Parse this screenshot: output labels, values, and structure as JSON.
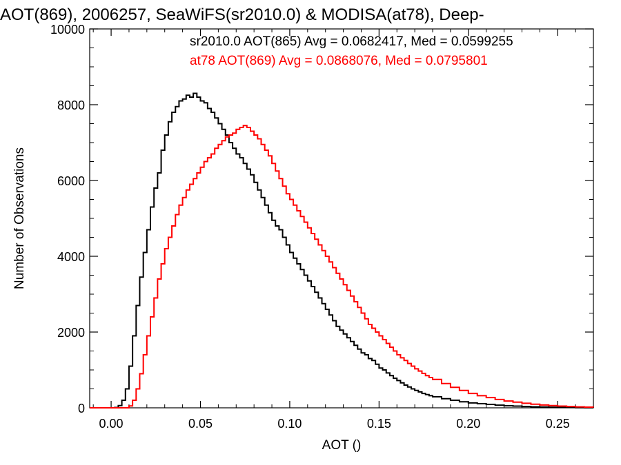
{
  "chart_data": {
    "type": "line",
    "title": "AOT(869), 2006257, SeaWiFS(sr2010.0) & MODISA(at78), Deep-",
    "xlabel": "AOT ()",
    "ylabel": "Number of Observations",
    "xlim": [
      -0.012,
      0.27
    ],
    "ylim": [
      0,
      10000
    ],
    "x_ticks": [
      0.0,
      0.05,
      0.1,
      0.15,
      0.2,
      0.25
    ],
    "x_tick_labels": [
      "0.00",
      "0.05",
      "0.10",
      "0.15",
      "0.20",
      "0.25"
    ],
    "y_ticks": [
      0,
      2000,
      4000,
      6000,
      8000,
      10000
    ],
    "y_tick_labels": [
      "0",
      "2000",
      "4000",
      "6000",
      "8000",
      "10000"
    ],
    "grid": false,
    "line_style": "step",
    "annotations": [
      {
        "text": "sr2010.0 AOT(865) Avg = 0.0682417, Med = 0.0599255",
        "color": "#000000"
      },
      {
        "text": "at78 AOT(869) Avg = 0.0868076, Med = 0.0795801",
        "color": "#ff0000"
      }
    ],
    "series": [
      {
        "color": "#000000",
        "points": [
          [
            -0.012,
            0
          ],
          [
            0.0,
            0
          ],
          [
            0.002,
            10
          ],
          [
            0.004,
            60
          ],
          [
            0.006,
            200
          ],
          [
            0.008,
            500
          ],
          [
            0.01,
            1100
          ],
          [
            0.012,
            1900
          ],
          [
            0.014,
            2700
          ],
          [
            0.016,
            3450
          ],
          [
            0.018,
            4100
          ],
          [
            0.02,
            4700
          ],
          [
            0.022,
            5300
          ],
          [
            0.024,
            5800
          ],
          [
            0.026,
            6200
          ],
          [
            0.028,
            6800
          ],
          [
            0.03,
            7200
          ],
          [
            0.032,
            7550
          ],
          [
            0.034,
            7800
          ],
          [
            0.036,
            7950
          ],
          [
            0.038,
            8100
          ],
          [
            0.04,
            8150
          ],
          [
            0.042,
            8250
          ],
          [
            0.044,
            8200
          ],
          [
            0.046,
            8300
          ],
          [
            0.048,
            8200
          ],
          [
            0.05,
            8100
          ],
          [
            0.052,
            8050
          ],
          [
            0.054,
            7900
          ],
          [
            0.056,
            7800
          ],
          [
            0.058,
            7650
          ],
          [
            0.06,
            7500
          ],
          [
            0.062,
            7350
          ],
          [
            0.064,
            7200
          ],
          [
            0.066,
            7000
          ],
          [
            0.068,
            6850
          ],
          [
            0.07,
            6700
          ],
          [
            0.072,
            6600
          ],
          [
            0.074,
            6450
          ],
          [
            0.076,
            6300
          ],
          [
            0.078,
            6150
          ],
          [
            0.08,
            5950
          ],
          [
            0.082,
            5750
          ],
          [
            0.084,
            5550
          ],
          [
            0.086,
            5350
          ],
          [
            0.088,
            5150
          ],
          [
            0.09,
            4950
          ],
          [
            0.092,
            4800
          ],
          [
            0.094,
            4700
          ],
          [
            0.096,
            4500
          ],
          [
            0.098,
            4300
          ],
          [
            0.1,
            4100
          ],
          [
            0.102,
            3950
          ],
          [
            0.104,
            3800
          ],
          [
            0.106,
            3650
          ],
          [
            0.108,
            3500
          ],
          [
            0.11,
            3350
          ],
          [
            0.112,
            3200
          ],
          [
            0.114,
            3050
          ],
          [
            0.116,
            2900
          ],
          [
            0.118,
            2750
          ],
          [
            0.12,
            2600
          ],
          [
            0.122,
            2450
          ],
          [
            0.124,
            2300
          ],
          [
            0.126,
            2150
          ],
          [
            0.128,
            2050
          ],
          [
            0.13,
            1950
          ],
          [
            0.132,
            1850
          ],
          [
            0.134,
            1750
          ],
          [
            0.136,
            1650
          ],
          [
            0.138,
            1550
          ],
          [
            0.14,
            1450
          ],
          [
            0.142,
            1400
          ],
          [
            0.144,
            1300
          ],
          [
            0.146,
            1250
          ],
          [
            0.148,
            1150
          ],
          [
            0.15,
            1050
          ],
          [
            0.152,
            1000
          ],
          [
            0.154,
            920
          ],
          [
            0.156,
            850
          ],
          [
            0.158,
            780
          ],
          [
            0.16,
            720
          ],
          [
            0.162,
            660
          ],
          [
            0.164,
            600
          ],
          [
            0.166,
            550
          ],
          [
            0.168,
            500
          ],
          [
            0.17,
            460
          ],
          [
            0.172,
            420
          ],
          [
            0.174,
            380
          ],
          [
            0.176,
            350
          ],
          [
            0.178,
            320
          ],
          [
            0.18,
            290
          ],
          [
            0.185,
            240
          ],
          [
            0.19,
            200
          ],
          [
            0.195,
            160
          ],
          [
            0.2,
            130
          ],
          [
            0.205,
            110
          ],
          [
            0.21,
            90
          ],
          [
            0.215,
            70
          ],
          [
            0.22,
            55
          ],
          [
            0.225,
            45
          ],
          [
            0.23,
            35
          ],
          [
            0.235,
            28
          ],
          [
            0.24,
            22
          ],
          [
            0.245,
            16
          ],
          [
            0.25,
            12
          ],
          [
            0.255,
            8
          ],
          [
            0.26,
            5
          ],
          [
            0.265,
            3
          ],
          [
            0.27,
            2
          ]
        ]
      },
      {
        "color": "#ff0000",
        "points": [
          [
            -0.012,
            0
          ],
          [
            0.0,
            0
          ],
          [
            0.006,
            0
          ],
          [
            0.008,
            0
          ],
          [
            0.01,
            50
          ],
          [
            0.012,
            200
          ],
          [
            0.014,
            500
          ],
          [
            0.016,
            900
          ],
          [
            0.018,
            1400
          ],
          [
            0.02,
            1900
          ],
          [
            0.022,
            2400
          ],
          [
            0.024,
            2900
          ],
          [
            0.026,
            3400
          ],
          [
            0.028,
            3800
          ],
          [
            0.03,
            4200
          ],
          [
            0.032,
            4500
          ],
          [
            0.034,
            4800
          ],
          [
            0.036,
            5100
          ],
          [
            0.038,
            5350
          ],
          [
            0.04,
            5550
          ],
          [
            0.042,
            5750
          ],
          [
            0.044,
            5900
          ],
          [
            0.046,
            6050
          ],
          [
            0.048,
            6200
          ],
          [
            0.05,
            6350
          ],
          [
            0.052,
            6500
          ],
          [
            0.054,
            6600
          ],
          [
            0.056,
            6700
          ],
          [
            0.058,
            6850
          ],
          [
            0.06,
            6950
          ],
          [
            0.062,
            7050
          ],
          [
            0.064,
            7150
          ],
          [
            0.066,
            7200
          ],
          [
            0.068,
            7250
          ],
          [
            0.07,
            7350
          ],
          [
            0.072,
            7400
          ],
          [
            0.074,
            7450
          ],
          [
            0.076,
            7400
          ],
          [
            0.078,
            7300
          ],
          [
            0.08,
            7200
          ],
          [
            0.082,
            7100
          ],
          [
            0.084,
            6950
          ],
          [
            0.086,
            6800
          ],
          [
            0.088,
            6650
          ],
          [
            0.09,
            6450
          ],
          [
            0.092,
            6250
          ],
          [
            0.094,
            6050
          ],
          [
            0.096,
            5850
          ],
          [
            0.098,
            5650
          ],
          [
            0.1,
            5500
          ],
          [
            0.102,
            5350
          ],
          [
            0.104,
            5200
          ],
          [
            0.106,
            5050
          ],
          [
            0.108,
            4900
          ],
          [
            0.11,
            4750
          ],
          [
            0.112,
            4600
          ],
          [
            0.114,
            4450
          ],
          [
            0.116,
            4300
          ],
          [
            0.118,
            4150
          ],
          [
            0.12,
            4000
          ],
          [
            0.122,
            3850
          ],
          [
            0.124,
            3700
          ],
          [
            0.126,
            3550
          ],
          [
            0.128,
            3400
          ],
          [
            0.13,
            3250
          ],
          [
            0.132,
            3100
          ],
          [
            0.134,
            2950
          ],
          [
            0.136,
            2800
          ],
          [
            0.138,
            2650
          ],
          [
            0.14,
            2500
          ],
          [
            0.142,
            2350
          ],
          [
            0.144,
            2200
          ],
          [
            0.146,
            2100
          ],
          [
            0.148,
            2000
          ],
          [
            0.15,
            1900
          ],
          [
            0.152,
            1800
          ],
          [
            0.154,
            1700
          ],
          [
            0.156,
            1600
          ],
          [
            0.158,
            1500
          ],
          [
            0.16,
            1400
          ],
          [
            0.162,
            1320
          ],
          [
            0.164,
            1250
          ],
          [
            0.166,
            1170
          ],
          [
            0.168,
            1100
          ],
          [
            0.17,
            1030
          ],
          [
            0.172,
            970
          ],
          [
            0.174,
            910
          ],
          [
            0.176,
            850
          ],
          [
            0.178,
            800
          ],
          [
            0.18,
            750
          ],
          [
            0.185,
            640
          ],
          [
            0.19,
            540
          ],
          [
            0.195,
            460
          ],
          [
            0.2,
            380
          ],
          [
            0.205,
            320
          ],
          [
            0.21,
            270
          ],
          [
            0.215,
            220
          ],
          [
            0.22,
            180
          ],
          [
            0.225,
            150
          ],
          [
            0.23,
            120
          ],
          [
            0.235,
            95
          ],
          [
            0.24,
            75
          ],
          [
            0.245,
            58
          ],
          [
            0.25,
            45
          ],
          [
            0.255,
            34
          ],
          [
            0.26,
            25
          ],
          [
            0.265,
            18
          ],
          [
            0.27,
            12
          ]
        ]
      }
    ]
  }
}
